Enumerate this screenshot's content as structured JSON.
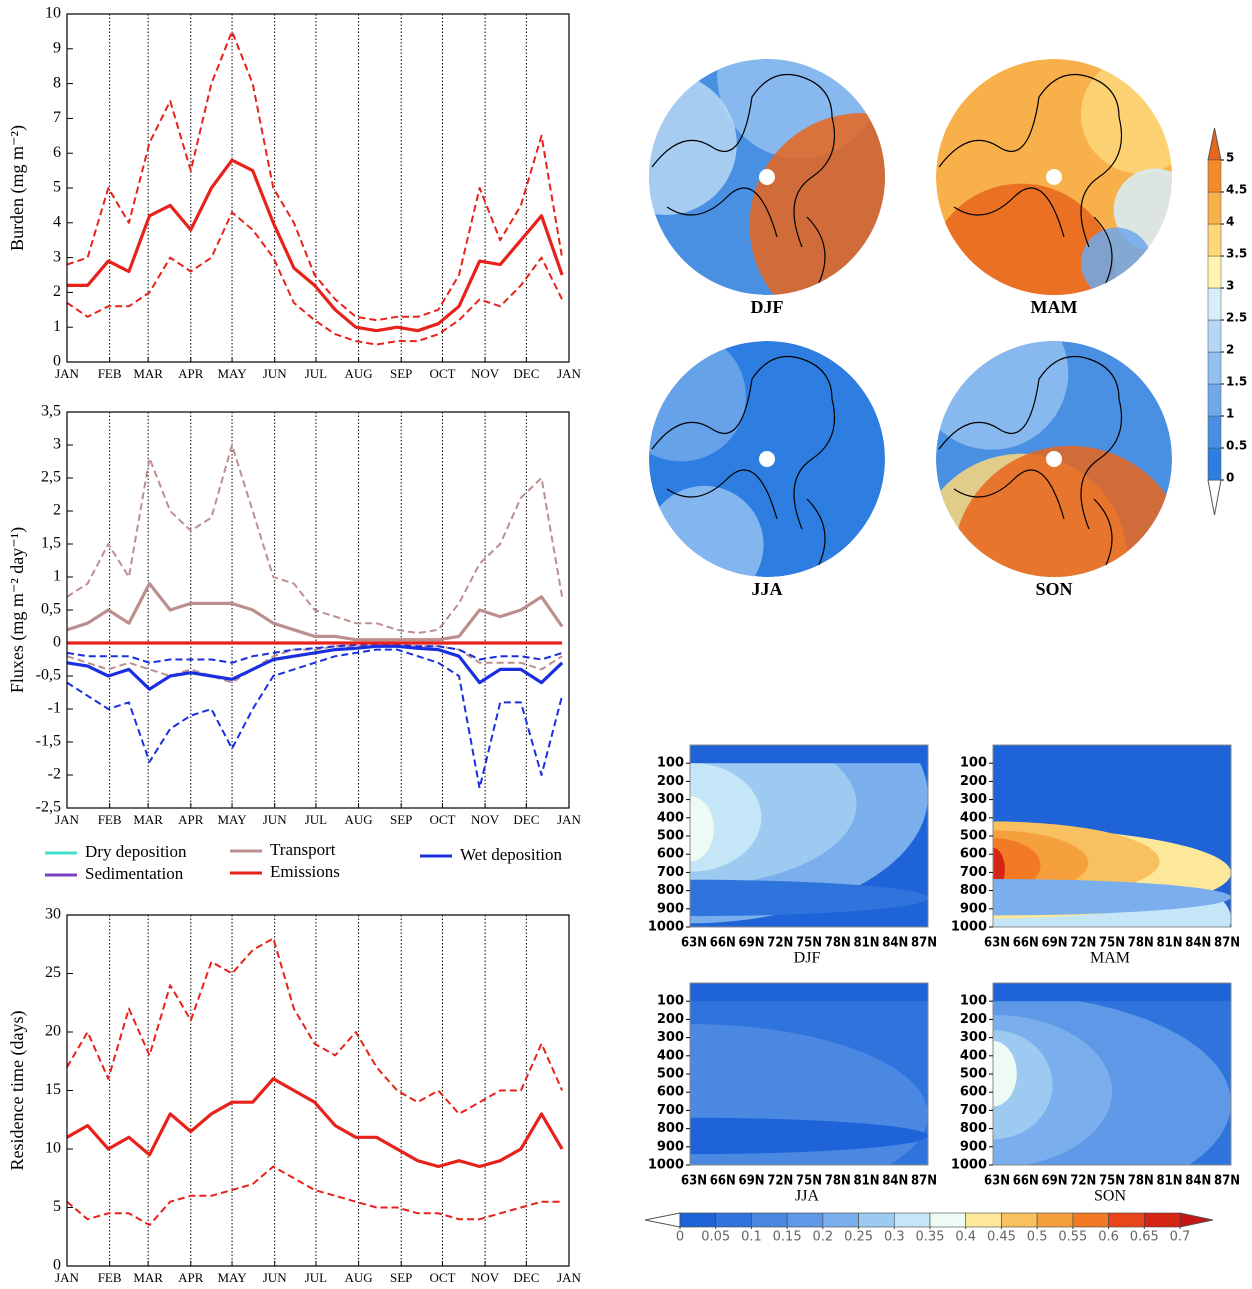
{
  "chart_data": [
    {
      "type": "line",
      "ylabel": "Burden (mg m⁻²)",
      "x": [
        0,
        15,
        30,
        45,
        60,
        75,
        90,
        105,
        120,
        135,
        150,
        165,
        180,
        195,
        210,
        225,
        240,
        255,
        270,
        285,
        300,
        315,
        330,
        345,
        360
      ],
      "xlim": [
        0,
        365
      ],
      "xticks": [
        {
          "value": 0,
          "label": "JAN"
        },
        {
          "value": 31,
          "label": "FEB"
        },
        {
          "value": 59,
          "label": "MAR"
        },
        {
          "value": 90,
          "label": "APR"
        },
        {
          "value": 120,
          "label": "MAY"
        },
        {
          "value": 151,
          "label": "JUN"
        },
        {
          "value": 181,
          "label": "JUL"
        },
        {
          "value": 212,
          "label": "AUG"
        },
        {
          "value": 243,
          "label": "SEP"
        },
        {
          "value": 273,
          "label": "OCT"
        },
        {
          "value": 304,
          "label": "NOV"
        },
        {
          "value": 334,
          "label": "DEC"
        },
        {
          "value": 365,
          "label": "JAN"
        }
      ],
      "ylim": [
        0,
        10
      ],
      "yticks": [
        0,
        1,
        2,
        3,
        4,
        5,
        6,
        7,
        8,
        9,
        10
      ],
      "grid": "x",
      "series": [
        {
          "color": "#e8211b",
          "style": "dashed",
          "values": [
            2.8,
            3.0,
            5.0,
            4.0,
            6.3,
            7.5,
            5.5,
            8.0,
            9.5,
            8.0,
            5.0,
            4.0,
            2.5,
            1.8,
            1.3,
            1.2,
            1.3,
            1.3,
            1.5,
            2.5,
            5.0,
            3.5,
            4.5,
            6.5,
            3.0
          ]
        },
        {
          "color": "#e8211b",
          "style": "dashed",
          "values": [
            1.7,
            1.3,
            1.6,
            1.6,
            2.0,
            3.0,
            2.6,
            3.0,
            4.3,
            3.8,
            3.0,
            1.7,
            1.2,
            0.8,
            0.6,
            0.5,
            0.6,
            0.6,
            0.8,
            1.2,
            1.8,
            1.6,
            2.2,
            3.0,
            1.8
          ]
        },
        {
          "color": "#e8211b",
          "style": "solid",
          "values": [
            2.2,
            2.2,
            2.9,
            2.6,
            4.2,
            4.5,
            3.8,
            5.0,
            5.8,
            5.5,
            4.0,
            2.7,
            2.2,
            1.5,
            1.0,
            0.9,
            1.0,
            0.9,
            1.1,
            1.6,
            2.9,
            2.8,
            3.5,
            4.2,
            2.5
          ]
        }
      ]
    },
    {
      "type": "line",
      "ylabel": "Fluxes (mg m⁻² day⁻¹)",
      "x": [
        0,
        15,
        30,
        45,
        60,
        75,
        90,
        105,
        120,
        135,
        150,
        165,
        180,
        195,
        210,
        225,
        240,
        255,
        270,
        285,
        300,
        315,
        330,
        345,
        360
      ],
      "xlim": [
        0,
        365
      ],
      "xticks": [
        {
          "value": 0,
          "label": "JAN"
        },
        {
          "value": 31,
          "label": "FEB"
        },
        {
          "value": 59,
          "label": "MAR"
        },
        {
          "value": 90,
          "label": "APR"
        },
        {
          "value": 120,
          "label": "MAY"
        },
        {
          "value": 151,
          "label": "JUN"
        },
        {
          "value": 181,
          "label": "JUL"
        },
        {
          "value": 212,
          "label": "AUG"
        },
        {
          "value": 243,
          "label": "SEP"
        },
        {
          "value": 273,
          "label": "OCT"
        },
        {
          "value": 304,
          "label": "NOV"
        },
        {
          "value": 334,
          "label": "DEC"
        },
        {
          "value": 365,
          "label": "JAN"
        }
      ],
      "ylim": [
        -2.5,
        3.5
      ],
      "yticks": [
        {
          "value": -2.5,
          "label": "-2,5"
        },
        -2,
        {
          "value": -1.5,
          "label": "-1,5"
        },
        -1,
        {
          "value": -0.5,
          "label": "-0,5"
        },
        0,
        {
          "value": 0.5,
          "label": "0,5"
        },
        1,
        {
          "value": 1.5,
          "label": "1,5"
        },
        2,
        {
          "value": 2.5,
          "label": "2,5"
        },
        3,
        {
          "value": 3.5,
          "label": "3,5"
        }
      ],
      "grid": "x",
      "series": [
        {
          "color": "#bc8f8f",
          "style": "dashed",
          "values": [
            0.7,
            0.9,
            1.5,
            1.0,
            2.8,
            2.0,
            1.7,
            1.9,
            3.0,
            2.0,
            1.0,
            0.9,
            0.5,
            0.4,
            0.3,
            0.3,
            0.2,
            0.15,
            0.2,
            0.6,
            1.2,
            1.5,
            2.2,
            2.5,
            0.7
          ]
        },
        {
          "color": "#bc8f8f",
          "style": "dashed",
          "values": [
            -0.2,
            -0.3,
            -0.4,
            -0.3,
            -0.4,
            -0.5,
            -0.4,
            -0.5,
            -0.6,
            -0.4,
            -0.2,
            -0.1,
            -0.1,
            -0.05,
            -0.05,
            -0.05,
            -0.05,
            -0.05,
            -0.05,
            -0.1,
            -0.3,
            -0.3,
            -0.3,
            -0.4,
            -0.2
          ]
        },
        {
          "color": "#bc8f8f",
          "style": "solid",
          "values": [
            0.2,
            0.3,
            0.5,
            0.3,
            0.9,
            0.5,
            0.6,
            0.6,
            0.6,
            0.5,
            0.3,
            0.2,
            0.1,
            0.1,
            0.05,
            0.05,
            0.05,
            0.05,
            0.05,
            0.1,
            0.5,
            0.4,
            0.5,
            0.7,
            0.25
          ]
        },
        {
          "color": "#1a2fe0",
          "style": "dashed",
          "values": [
            -0.15,
            -0.2,
            -0.2,
            -0.2,
            -0.3,
            -0.25,
            -0.25,
            -0.25,
            -0.3,
            -0.2,
            -0.15,
            -0.1,
            -0.08,
            -0.05,
            -0.03,
            -0.02,
            -0.03,
            -0.05,
            -0.05,
            -0.1,
            -0.25,
            -0.2,
            -0.2,
            -0.25,
            -0.15
          ]
        },
        {
          "color": "#1a2fe0",
          "style": "dashed",
          "values": [
            -0.6,
            -0.8,
            -1.0,
            -0.9,
            -1.8,
            -1.3,
            -1.1,
            -1.0,
            -1.6,
            -1.0,
            -0.5,
            -0.4,
            -0.3,
            -0.2,
            -0.15,
            -0.1,
            -0.1,
            -0.2,
            -0.3,
            -0.5,
            -2.2,
            -0.9,
            -0.9,
            -2.0,
            -0.8
          ]
        },
        {
          "color": "#1a2fe0",
          "style": "solid",
          "values": [
            -0.3,
            -0.35,
            -0.5,
            -0.4,
            -0.7,
            -0.5,
            -0.45,
            -0.5,
            -0.55,
            -0.4,
            -0.25,
            -0.2,
            -0.15,
            -0.1,
            -0.08,
            -0.05,
            -0.05,
            -0.08,
            -0.1,
            -0.2,
            -0.6,
            -0.4,
            -0.4,
            -0.6,
            -0.3
          ]
        },
        {
          "color": "#e8211b",
          "style": "solid",
          "values": [
            0,
            0,
            0,
            0,
            0,
            0,
            0,
            0,
            0,
            0,
            0,
            0,
            0,
            0,
            0,
            0,
            0,
            0,
            0,
            0,
            0,
            0,
            0,
            0,
            0
          ]
        }
      ],
      "legend": [
        {
          "label": "Dry deposition",
          "color": "#40e0d0"
        },
        {
          "label": "Sedimentation",
          "color": "#7b3fc4"
        },
        {
          "label": "Transport",
          "color": "#bc8f8f"
        },
        {
          "label": "Emissions",
          "color": "#e8211b"
        },
        {
          "label": "Wet deposition",
          "color": "#1a2fe0"
        }
      ]
    },
    {
      "type": "line",
      "ylabel": "Residence time (days)",
      "x": [
        0,
        15,
        30,
        45,
        60,
        75,
        90,
        105,
        120,
        135,
        150,
        165,
        180,
        195,
        210,
        225,
        240,
        255,
        270,
        285,
        300,
        315,
        330,
        345,
        360
      ],
      "xlim": [
        0,
        365
      ],
      "xticks": [
        {
          "value": 0,
          "label": "JAN"
        },
        {
          "value": 31,
          "label": "FEB"
        },
        {
          "value": 59,
          "label": "MAR"
        },
        {
          "value": 90,
          "label": "APR"
        },
        {
          "value": 120,
          "label": "MAY"
        },
        {
          "value": 151,
          "label": "JUN"
        },
        {
          "value": 181,
          "label": "JUL"
        },
        {
          "value": 212,
          "label": "AUG"
        },
        {
          "value": 243,
          "label": "SEP"
        },
        {
          "value": 273,
          "label": "OCT"
        },
        {
          "value": 304,
          "label": "NOV"
        },
        {
          "value": 334,
          "label": "DEC"
        },
        {
          "value": 365,
          "label": "JAN"
        }
      ],
      "ylim": [
        0,
        30
      ],
      "yticks": [
        0,
        5,
        10,
        15,
        20,
        25,
        30
      ],
      "grid": "x",
      "series": [
        {
          "color": "#e8211b",
          "style": "dashed",
          "values": [
            17,
            20,
            16,
            22,
            18,
            24,
            21,
            26,
            25,
            27,
            28,
            22,
            19,
            18,
            20,
            17,
            15,
            14,
            15,
            13,
            14,
            15,
            15,
            19,
            15
          ]
        },
        {
          "color": "#e8211b",
          "style": "dashed",
          "values": [
            5.5,
            4,
            4.5,
            4.5,
            3.5,
            5.5,
            6,
            6,
            6.5,
            7,
            8.5,
            7.5,
            6.5,
            6,
            5.5,
            5,
            5,
            4.5,
            4.5,
            4,
            4,
            4.5,
            5,
            5.5,
            5.5
          ]
        },
        {
          "color": "#e8211b",
          "style": "solid",
          "values": [
            11,
            12,
            10,
            11,
            9.5,
            13,
            11.5,
            13,
            14,
            14,
            16,
            15,
            14,
            12,
            11,
            11,
            10,
            9,
            8.5,
            9,
            8.5,
            9,
            10,
            13,
            10
          ]
        }
      ]
    },
    {
      "type": "polar-map",
      "panels": [
        "DJF",
        "MAM",
        "JJA",
        "SON"
      ],
      "colorbar": {
        "ticks": [
          0,
          0.5,
          1,
          1.5,
          2,
          2.5,
          3,
          3.5,
          4,
          4.5,
          5
        ],
        "colors": [
          "#ffffff",
          "#2e7de0",
          "#4a90e2",
          "#6fa8eb",
          "#92c0f0",
          "#b6d7f5",
          "#d8eefa",
          "#fff5b0",
          "#fdd77a",
          "#f8b04a",
          "#f28b2a",
          "#e8651c"
        ]
      }
    },
    {
      "type": "contour",
      "panels": [
        "DJF",
        "MAM",
        "JJA",
        "SON"
      ],
      "ylim": [
        0,
        1000
      ],
      "yticks": [
        100,
        200,
        300,
        400,
        500,
        600,
        700,
        800,
        900,
        1000
      ],
      "categories": [
        "63N",
        "66N",
        "69N",
        "72N",
        "75N",
        "78N",
        "81N",
        "84N",
        "87N"
      ],
      "colorbar": {
        "ticks": [
          0,
          0.05,
          0.1,
          0.15,
          0.2,
          0.25,
          0.3,
          0.35,
          0.4,
          0.45,
          0.5,
          0.55,
          0.6,
          0.65,
          0.7
        ],
        "colors": [
          "#ffffff",
          "#1e64d8",
          "#2f74dc",
          "#4a88e2",
          "#5f98e6",
          "#7aaeec",
          "#9ccaf0",
          "#c4e6f6",
          "#eefaf4",
          "#fde89a",
          "#f9c060",
          "#f5a03c",
          "#f27a24",
          "#e8461a",
          "#d42414",
          "#c81414"
        ]
      }
    }
  ]
}
